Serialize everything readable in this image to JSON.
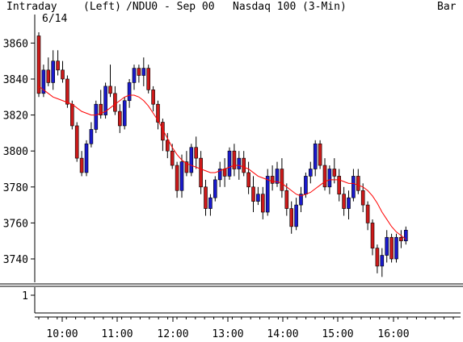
{
  "header": {
    "mode": "Intraday",
    "date": "6/14",
    "axis_side": "(Left)",
    "symbol": "/NDU0 - Sep 00",
    "name": "Nasdaq 100",
    "interval": "(3-Min)",
    "style": "Bar"
  },
  "colors": {
    "up": "#1a1acc",
    "down": "#cc1a1a",
    "ma": "#ff0000",
    "axis": "#000000"
  },
  "chart_data": {
    "type": "candlestick",
    "price_axis": {
      "ylim": [
        3727,
        3866
      ],
      "ticks": [
        3740,
        3760,
        3780,
        3800,
        3820,
        3840,
        3860
      ]
    },
    "volume_axis": {
      "ticks": [
        1
      ]
    },
    "time_axis": {
      "labels": [
        "10:00",
        "11:00",
        "12:00",
        "13:00",
        "14:00",
        "15:00",
        "16:00"
      ]
    },
    "candles_ohlc": [
      [
        3864,
        3866,
        3830,
        3832
      ],
      [
        3832,
        3848,
        3830,
        3845
      ],
      [
        3845,
        3852,
        3836,
        3838
      ],
      [
        3838,
        3856,
        3834,
        3850
      ],
      [
        3850,
        3856,
        3842,
        3845
      ],
      [
        3845,
        3850,
        3838,
        3840
      ],
      [
        3840,
        3842,
        3824,
        3826
      ],
      [
        3826,
        3828,
        3812,
        3814
      ],
      [
        3814,
        3816,
        3794,
        3796
      ],
      [
        3796,
        3800,
        3786,
        3788
      ],
      [
        3788,
        3806,
        3786,
        3804
      ],
      [
        3804,
        3816,
        3802,
        3812
      ],
      [
        3812,
        3828,
        3810,
        3826
      ],
      [
        3826,
        3834,
        3818,
        3820
      ],
      [
        3820,
        3838,
        3818,
        3836
      ],
      [
        3836,
        3848,
        3830,
        3832
      ],
      [
        3832,
        3836,
        3820,
        3822
      ],
      [
        3822,
        3826,
        3810,
        3814
      ],
      [
        3814,
        3830,
        3812,
        3828
      ],
      [
        3828,
        3840,
        3824,
        3838
      ],
      [
        3838,
        3848,
        3834,
        3846
      ],
      [
        3846,
        3848,
        3838,
        3842
      ],
      [
        3842,
        3852,
        3836,
        3846
      ],
      [
        3846,
        3848,
        3832,
        3834
      ],
      [
        3834,
        3836,
        3822,
        3826
      ],
      [
        3826,
        3828,
        3812,
        3816
      ],
      [
        3816,
        3818,
        3800,
        3806
      ],
      [
        3806,
        3810,
        3796,
        3800
      ],
      [
        3800,
        3804,
        3790,
        3792
      ],
      [
        3792,
        3794,
        3774,
        3778
      ],
      [
        3778,
        3798,
        3774,
        3794
      ],
      [
        3794,
        3800,
        3786,
        3788
      ],
      [
        3788,
        3804,
        3786,
        3802
      ],
      [
        3802,
        3808,
        3790,
        3796
      ],
      [
        3796,
        3800,
        3776,
        3780
      ],
      [
        3780,
        3784,
        3764,
        3768
      ],
      [
        3768,
        3776,
        3764,
        3774
      ],
      [
        3774,
        3786,
        3772,
        3784
      ],
      [
        3784,
        3794,
        3780,
        3790
      ],
      [
        3790,
        3796,
        3780,
        3786
      ],
      [
        3786,
        3802,
        3784,
        3800
      ],
      [
        3800,
        3804,
        3786,
        3790
      ],
      [
        3790,
        3800,
        3784,
        3796
      ],
      [
        3796,
        3800,
        3786,
        3788
      ],
      [
        3788,
        3794,
        3776,
        3780
      ],
      [
        3780,
        3786,
        3766,
        3772
      ],
      [
        3772,
        3780,
        3770,
        3776
      ],
      [
        3776,
        3780,
        3762,
        3766
      ],
      [
        3766,
        3790,
        3764,
        3786
      ],
      [
        3786,
        3792,
        3778,
        3782
      ],
      [
        3782,
        3794,
        3780,
        3790
      ],
      [
        3790,
        3796,
        3774,
        3778
      ],
      [
        3778,
        3782,
        3764,
        3768
      ],
      [
        3768,
        3772,
        3754,
        3758
      ],
      [
        3758,
        3774,
        3756,
        3770
      ],
      [
        3770,
        3780,
        3766,
        3776
      ],
      [
        3776,
        3788,
        3774,
        3786
      ],
      [
        3786,
        3794,
        3782,
        3790
      ],
      [
        3790,
        3806,
        3786,
        3804
      ],
      [
        3804,
        3806,
        3790,
        3792
      ],
      [
        3792,
        3796,
        3778,
        3780
      ],
      [
        3780,
        3792,
        3776,
        3790
      ],
      [
        3790,
        3796,
        3782,
        3786
      ],
      [
        3786,
        3790,
        3772,
        3776
      ],
      [
        3776,
        3780,
        3764,
        3768
      ],
      [
        3768,
        3778,
        3762,
        3774
      ],
      [
        3774,
        3790,
        3772,
        3786
      ],
      [
        3786,
        3790,
        3776,
        3778
      ],
      [
        3778,
        3782,
        3766,
        3770
      ],
      [
        3770,
        3772,
        3756,
        3760
      ],
      [
        3760,
        3762,
        3742,
        3746
      ],
      [
        3746,
        3748,
        3732,
        3736
      ],
      [
        3736,
        3746,
        3730,
        3742
      ],
      [
        3742,
        3756,
        3738,
        3752
      ],
      [
        3752,
        3754,
        3738,
        3740
      ],
      [
        3740,
        3754,
        3738,
        3752
      ],
      [
        3752,
        3756,
        3746,
        3750
      ],
      [
        3750,
        3758,
        3748,
        3756
      ]
    ],
    "moving_average": [
      3836,
      3834,
      3832,
      3830,
      3829,
      3828,
      3827,
      3826,
      3824,
      3822,
      3821,
      3820,
      3820,
      3821,
      3822,
      3824,
      3826,
      3828,
      3830,
      3831,
      3831,
      3830,
      3828,
      3825,
      3821,
      3817,
      3812,
      3807,
      3802,
      3798,
      3795,
      3793,
      3792,
      3791,
      3790,
      3789,
      3788,
      3788,
      3789,
      3790,
      3791,
      3792,
      3792,
      3791,
      3790,
      3788,
      3786,
      3785,
      3784,
      3783,
      3783,
      3782,
      3780,
      3778,
      3776,
      3775,
      3776,
      3777,
      3779,
      3781,
      3783,
      3784,
      3784,
      3784,
      3783,
      3782,
      3782,
      3781,
      3780,
      3778,
      3775,
      3771,
      3766,
      3762,
      3758,
      3755,
      3753,
      3751
    ]
  }
}
